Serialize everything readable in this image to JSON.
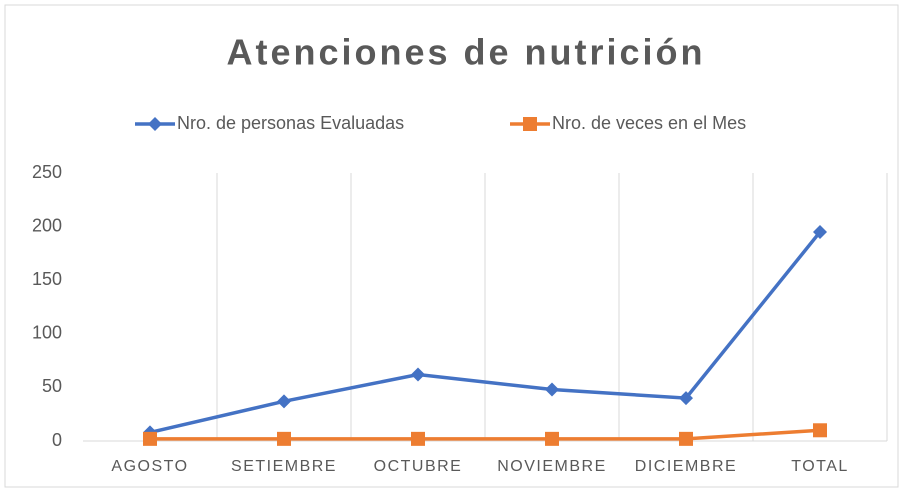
{
  "chart_data": {
    "type": "line",
    "title": "Atenciones de nutrición",
    "categories": [
      "AGOSTO",
      "SETIEMBRE",
      "OCTUBRE",
      "NOVIEMBRE",
      "DICIEMBRE",
      "TOTAL"
    ],
    "series": [
      {
        "name": "Nro. de personas Evaluadas",
        "color": "#4472c4",
        "marker": "diamond",
        "values": [
          8,
          37,
          62,
          48,
          40,
          195
        ]
      },
      {
        "name": "Nro. de veces en el Mes",
        "color": "#ed7d31",
        "marker": "square",
        "values": [
          2,
          2,
          2,
          2,
          2,
          10
        ]
      }
    ],
    "ylim": [
      0,
      250
    ],
    "yticks": [
      0,
      50,
      100,
      150,
      200,
      250
    ],
    "grid": "x",
    "legend": "top"
  }
}
